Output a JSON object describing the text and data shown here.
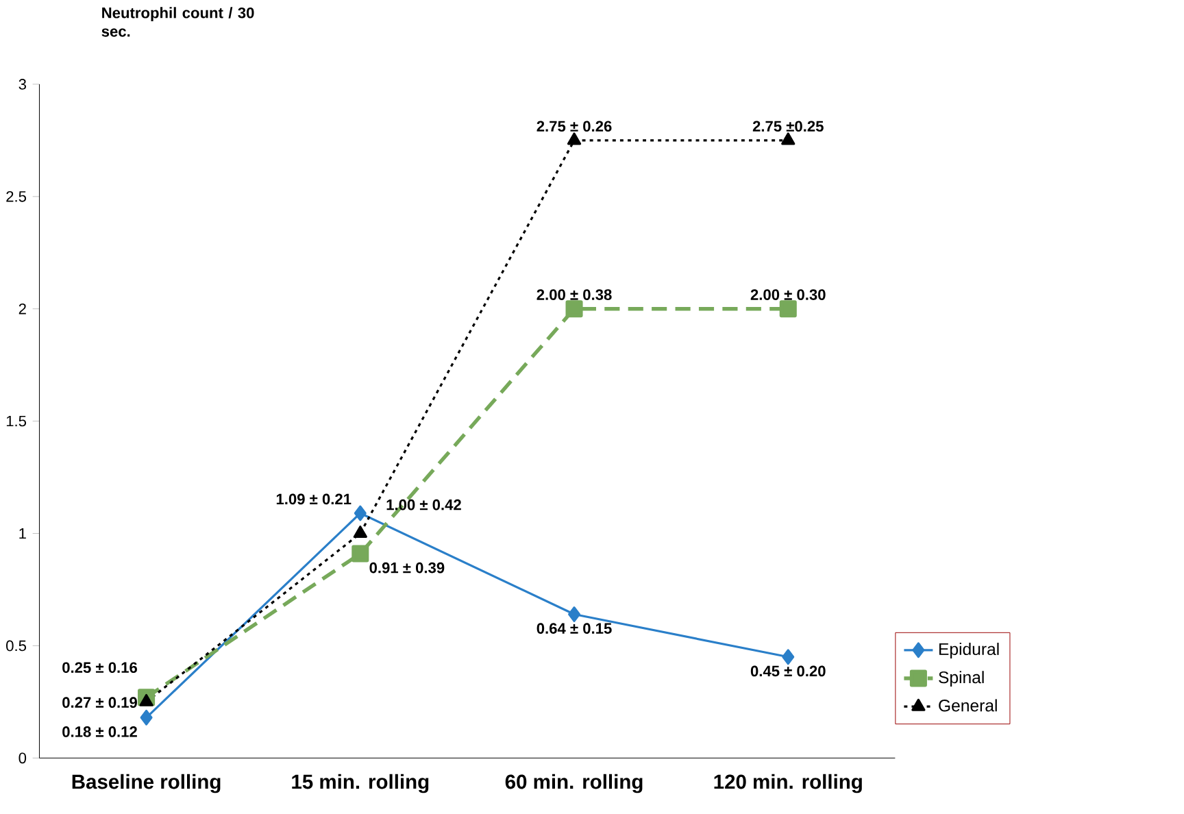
{
  "chart_data": {
    "type": "line",
    "ylabel": "Neutrophil count / 30 sec.",
    "categories": [
      "Baseline rolling",
      "15 min. rolling",
      "60 min. rolling",
      "120 min. rolling"
    ],
    "ylim": [
      0,
      3
    ],
    "yticks": [
      0,
      0.5,
      1,
      1.5,
      2,
      2.5,
      3
    ],
    "grid": false,
    "legend": "bottom right",
    "series": [
      {
        "name": "Epidural",
        "color": "#2a7fc9",
        "marker": "diamond",
        "line_style": "solid",
        "values": [
          0.18,
          1.09,
          0.64,
          0.45
        ],
        "value_labels": [
          "0.18 ± 0.12",
          "1.09 ± 0.21",
          "0.64 ± 0.15",
          "0.45 ± 0.20"
        ]
      },
      {
        "name": "Spinal",
        "color": "#77a95a",
        "marker": "square",
        "line_style": "dashed",
        "values": [
          0.27,
          0.91,
          2.0,
          2.0
        ],
        "value_labels": [
          "0.27 ± 0.19",
          "0.91 ± 0.39",
          "2.00 ± 0.38",
          "2.00 ± 0.30"
        ]
      },
      {
        "name": "General",
        "color": "#000000",
        "marker": "triangle",
        "line_style": "dotted",
        "values": [
          0.25,
          1.0,
          2.75,
          2.75
        ],
        "value_labels": [
          "0.25 ± 0.16",
          "1.00 ± 0.42",
          "2.75 ± 0.26",
          "2.75 ±0.25"
        ]
      }
    ]
  }
}
